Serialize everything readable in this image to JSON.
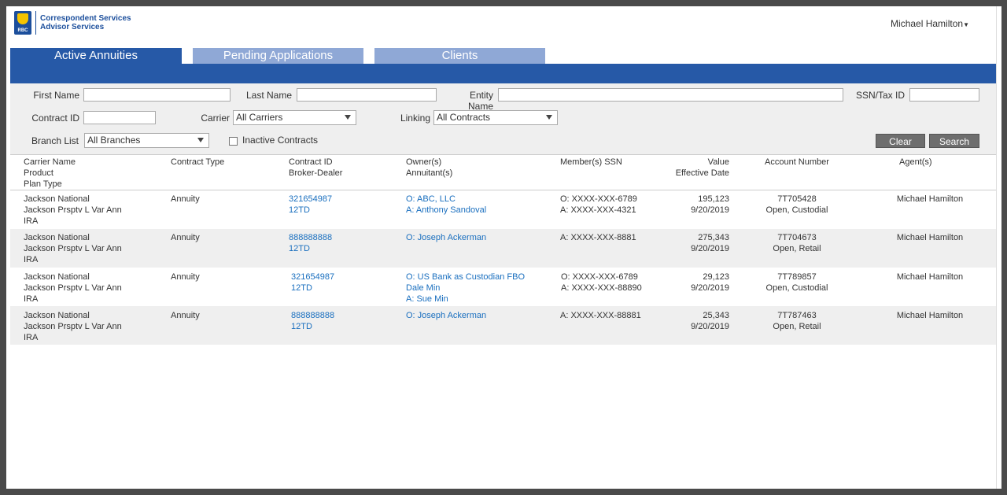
{
  "brand": {
    "logo_text": "RBC",
    "line1": "Correspondent Services",
    "line2": "Advisor Services"
  },
  "user": {
    "name": "Michael Hamilton"
  },
  "tabs": [
    {
      "label": "Active Annuities"
    },
    {
      "label": "Pending Applications"
    },
    {
      "label": "Clients"
    }
  ],
  "filters": {
    "first_name_label": "First Name",
    "last_name_label": "Last Name",
    "entity_name_label": "Entity Name",
    "ssn_label": "SSN/Tax ID",
    "contract_id_label": "Contract ID",
    "carrier_label": "Carrier",
    "carrier_value": "All Carriers",
    "linking_label": "Linking",
    "linking_value": "All Contracts",
    "branch_label": "Branch List",
    "branch_value": "All Branches",
    "inactive_label": "Inactive Contracts",
    "clear_label": "Clear",
    "search_label": "Search"
  },
  "columns": {
    "carrier": [
      "Carrier Name",
      "Product",
      "Plan Type"
    ],
    "contract_type": "Contract Type",
    "contract": [
      "Contract ID",
      "Broker-Dealer"
    ],
    "owners": [
      "Owner(s)",
      "Annuitant(s)"
    ],
    "ssn": "Member(s) SSN",
    "value": [
      "Value",
      "Effective Date"
    ],
    "account": "Account Number",
    "agents": "Agent(s)"
  },
  "rows": [
    {
      "carrier": [
        "Jackson National",
        "Jackson Prsptv L Var Ann",
        "IRA"
      ],
      "contract_type": "Annuity",
      "contract": [
        "321654987",
        "12TD"
      ],
      "owners": [
        "O: ABC, LLC",
        "A: Anthony Sandoval"
      ],
      "ssn": [
        "O: XXXX-XXX-6789",
        "A: XXXX-XXX-4321"
      ],
      "value": [
        "195,123",
        "9/20/2019"
      ],
      "account": [
        "7T705428",
        "Open, Custodial"
      ],
      "agent": "Michael Hamilton"
    },
    {
      "carrier": [
        "Jackson National",
        "Jackson Prsptv L Var Ann",
        "IRA"
      ],
      "contract_type": "Annuity",
      "contract": [
        "888888888",
        "12TD"
      ],
      "owners": [
        "O: Joseph Ackerman"
      ],
      "ssn": [
        "A: XXXX-XXX-8881"
      ],
      "value": [
        "275,343",
        "9/20/2019"
      ],
      "account": [
        "7T704673",
        "Open, Retail"
      ],
      "agent": "Michael Hamilton"
    },
    {
      "carrier": [
        "Jackson National",
        "Jackson Prsptv L Var Ann",
        "IRA"
      ],
      "contract_type": "Annuity",
      "contract": [
        "321654987",
        "12TD"
      ],
      "owners": [
        "O: US Bank as Custodian FBO",
        "Dale Min",
        "A: Sue Min"
      ],
      "ssn": [
        "O: XXXX-XXX-6789",
        "A: XXXX-XXX-88890"
      ],
      "value": [
        "29,123",
        "9/20/2019"
      ],
      "account": [
        "7T789857",
        "Open, Custodial"
      ],
      "agent": "Michael Hamilton"
    },
    {
      "carrier": [
        "Jackson National",
        "Jackson Prsptv L Var Ann",
        "IRA"
      ],
      "contract_type": "Annuity",
      "contract": [
        "888888888",
        "12TD"
      ],
      "owners": [
        "O: Joseph Ackerman"
      ],
      "ssn": [
        "A: XXXX-XXX-88881"
      ],
      "value": [
        "25,343",
        "9/20/2019"
      ],
      "account": [
        "7T787463",
        "Open, Retail"
      ],
      "agent": "Michael Hamilton"
    }
  ]
}
